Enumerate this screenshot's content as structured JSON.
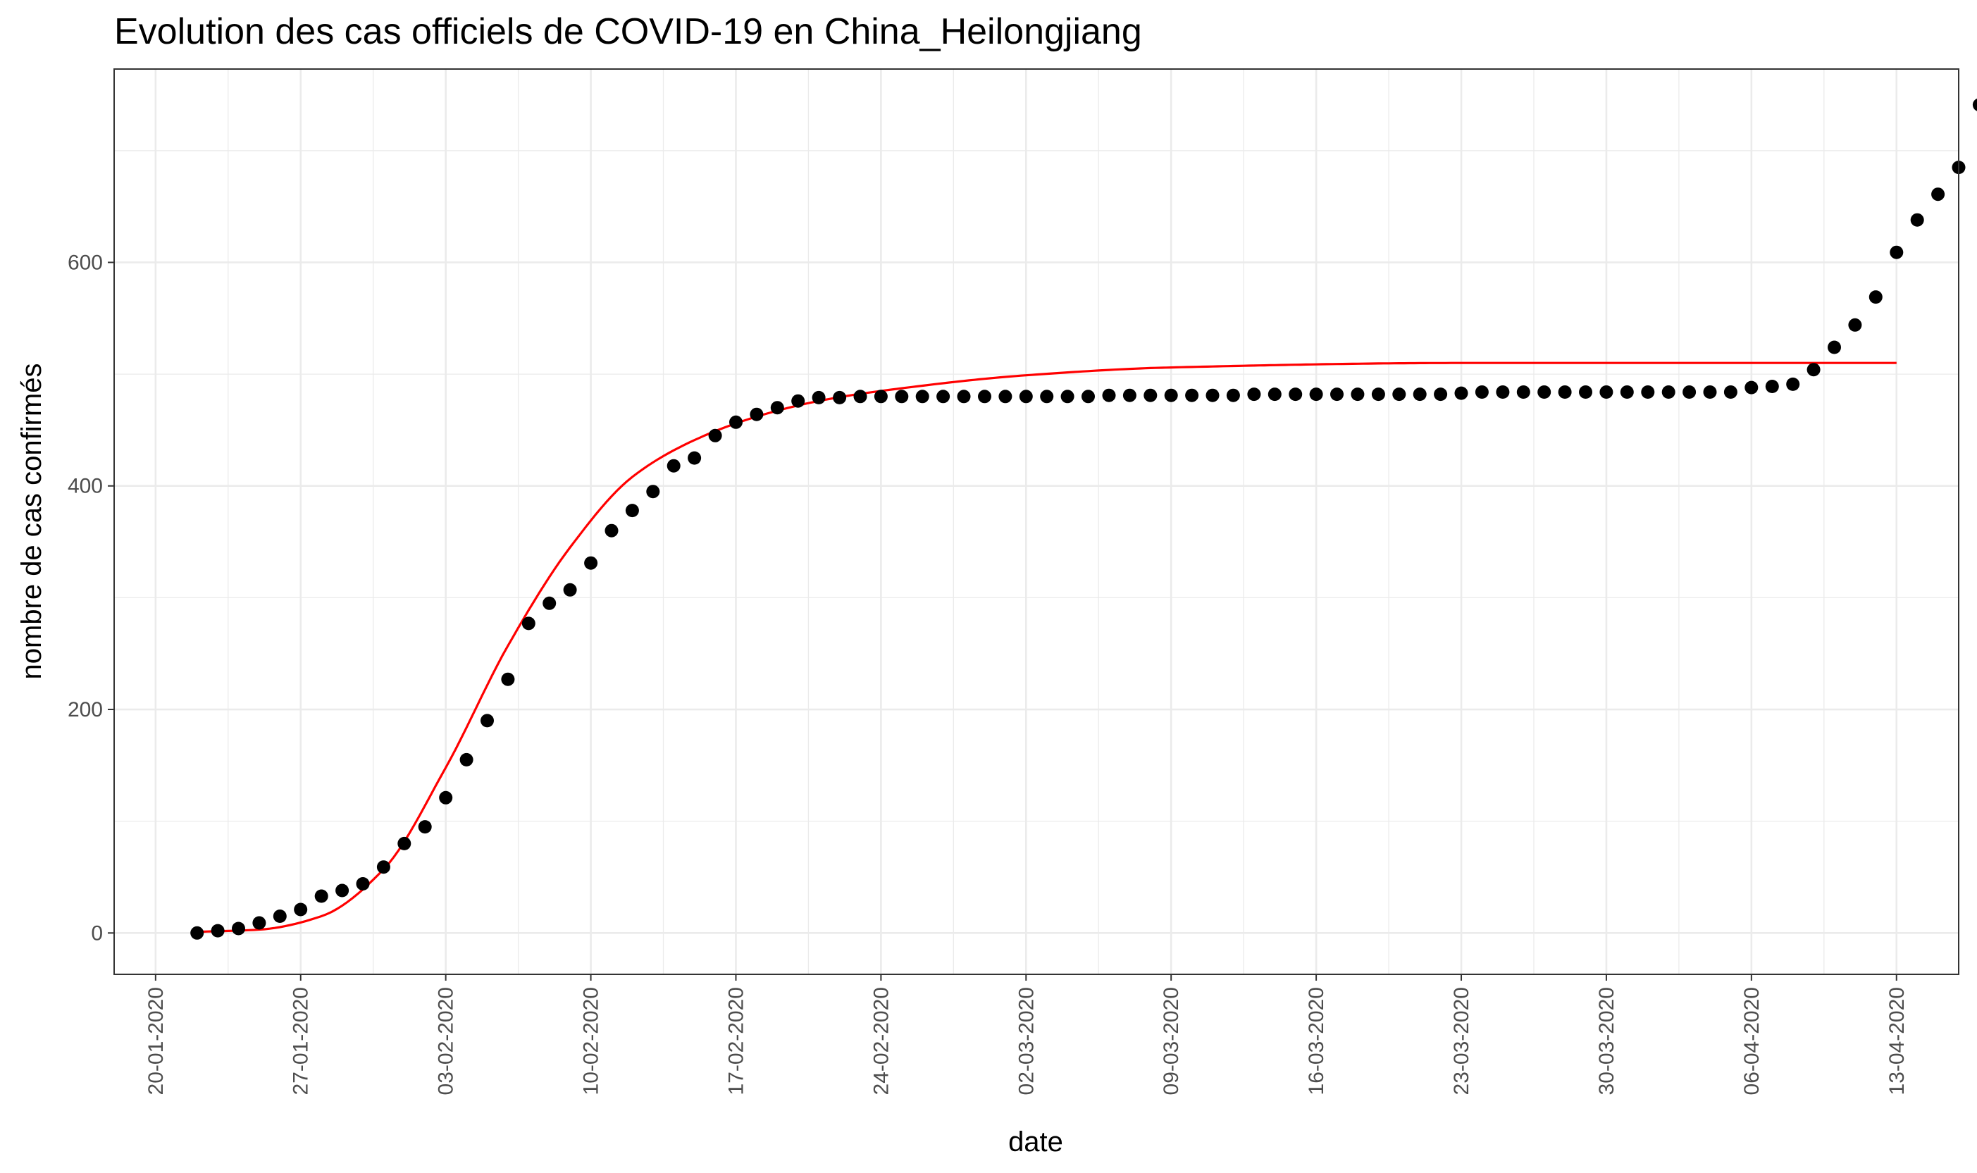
{
  "chart_data": {
    "type": "scatter",
    "title": "Evolution des cas officiels de COVID-19 en China_Heilongjiang",
    "xlabel": "date",
    "ylabel": "nombre de cas confirmés",
    "x_range": [
      "2020-01-18",
      "2020-04-16"
    ],
    "ylim": [
      -37,
      773
    ],
    "y_ticks": [
      0,
      200,
      400,
      600
    ],
    "x_tick_labels": [
      "20-01-2020",
      "27-01-2020",
      "03-02-2020",
      "10-02-2020",
      "17-02-2020",
      "24-02-2020",
      "02-03-2020",
      "09-03-2020",
      "16-03-2020",
      "23-03-2020",
      "30-03-2020",
      "06-04-2020",
      "13-04-2020"
    ],
    "grid": true,
    "legend": "none",
    "series": [
      {
        "type": "scatter",
        "color": "#000000",
        "x_start": "2020-01-22",
        "x_step_days": 1,
        "values": [
          0,
          2,
          4,
          9,
          15,
          21,
          33,
          38,
          44,
          59,
          80,
          95,
          121,
          155,
          190,
          227,
          277,
          295,
          307,
          331,
          360,
          378,
          395,
          418,
          425,
          445,
          457,
          464,
          470,
          476,
          479,
          479,
          480,
          480,
          480,
          480,
          480,
          480,
          480,
          480,
          480,
          480,
          480,
          480,
          481,
          481,
          481,
          481,
          481,
          481,
          481,
          482,
          482,
          482,
          482,
          482,
          482,
          482,
          482,
          482,
          482,
          483,
          484,
          484,
          484,
          484,
          484,
          484,
          484,
          484,
          484,
          484,
          484,
          484,
          484,
          488,
          489,
          491,
          504,
          524,
          544,
          569,
          609,
          638,
          661,
          685,
          741
        ]
      },
      {
        "type": "line",
        "color": "#ff0000",
        "fit": "logistic",
        "x_start": "2020-01-22",
        "x_end": "2020-04-13",
        "x": [
          "2020-01-22",
          "2020-01-25",
          "2020-01-28",
          "2020-01-31",
          "2020-02-03",
          "2020-02-06",
          "2020-02-09",
          "2020-02-12",
          "2020-02-15",
          "2020-02-18",
          "2020-02-21",
          "2020-02-24",
          "2020-03-02",
          "2020-03-09",
          "2020-03-23",
          "2020-04-13"
        ],
        "values": [
          1,
          3,
          15,
          57,
          148,
          257,
          345,
          408,
          441,
          462,
          476,
          485,
          499,
          506,
          510,
          510
        ]
      }
    ]
  }
}
